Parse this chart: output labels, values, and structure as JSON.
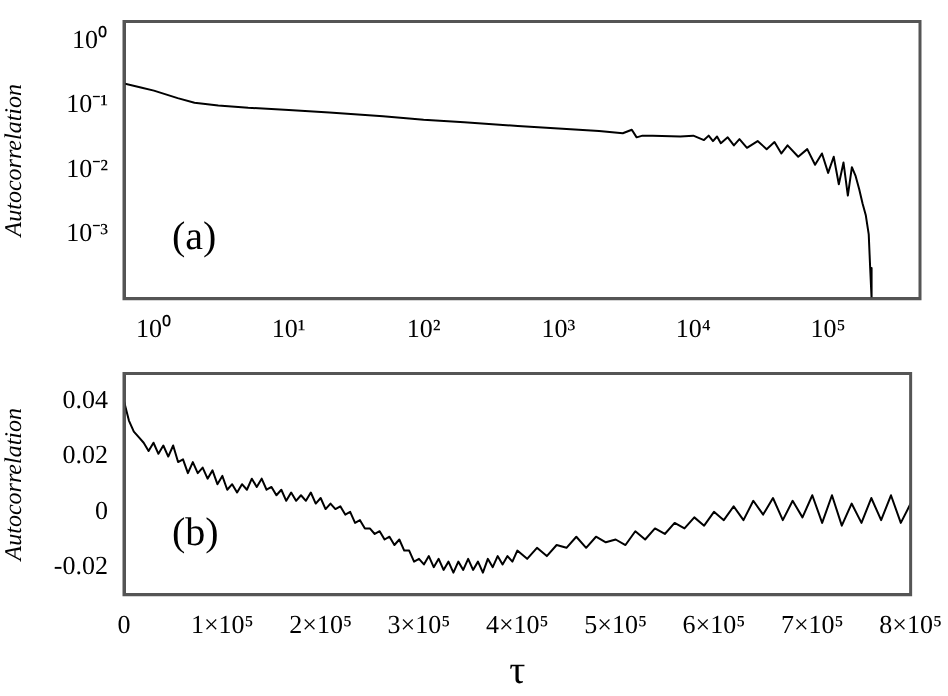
{
  "chart_data": [
    {
      "type": "line",
      "ylabel": "Autocorrelation",
      "log": "xy",
      "grid": false,
      "line_style": "solid",
      "marker": "none",
      "xlim": [
        0.6,
        480000
      ],
      "xticks": [
        {
          "value": 1,
          "label": "10⁰"
        },
        {
          "value": 10,
          "label": "10¹"
        },
        {
          "value": 100,
          "label": "10²"
        },
        {
          "value": 1000,
          "label": "10³"
        },
        {
          "value": 10000,
          "label": "10⁴"
        },
        {
          "value": 100000,
          "label": "10⁵"
        }
      ],
      "ylim": [
        0.0001,
        2
      ],
      "yticks": [
        {
          "value": 1,
          "label": "10⁰"
        },
        {
          "value": 0.1,
          "label": "10⁻¹"
        },
        {
          "value": 0.01,
          "label": "10⁻²"
        },
        {
          "value": 0.001,
          "label": "10⁻³"
        }
      ],
      "annotations": [
        "(a)"
      ],
      "series": [
        {
          "color": "#000000",
          "x": [
            0.6,
            0.8,
            1,
            1.5,
            2,
            3,
            5,
            10,
            20,
            50,
            100,
            200,
            500,
            1000,
            2000,
            3000,
            3500,
            3800,
            4200,
            5000,
            8000,
            10000,
            12000,
            13000,
            14000,
            15000,
            16000,
            18000,
            20000,
            22000,
            25000,
            30000,
            35000,
            40000,
            45000,
            50000,
            60000,
            70000,
            80000,
            90000,
            100000,
            110000,
            120000,
            130000,
            140000,
            150000,
            160000,
            170000,
            180000,
            190000,
            200000,
            205000,
            210000
          ],
          "values": [
            0.22,
            0.19,
            0.17,
            0.13,
            0.11,
            0.1,
            0.092,
            0.085,
            0.078,
            0.068,
            0.06,
            0.055,
            0.048,
            0.044,
            0.04,
            0.037,
            0.042,
            0.032,
            0.034,
            0.034,
            0.033,
            0.034,
            0.029,
            0.034,
            0.028,
            0.033,
            0.026,
            0.032,
            0.024,
            0.03,
            0.022,
            0.028,
            0.021,
            0.027,
            0.018,
            0.024,
            0.016,
            0.021,
            0.012,
            0.018,
            0.009,
            0.016,
            0.006,
            0.013,
            0.004,
            0.011,
            0.008,
            0.005,
            0.003,
            0.002,
            0.001,
            0.0003,
            0.0001
          ]
        }
      ]
    },
    {
      "type": "line",
      "xlabel": "τ",
      "ylabel": "Autocorrelation",
      "grid": false,
      "line_style": "solid",
      "marker": "none",
      "xlim": [
        0,
        800000
      ],
      "xticks": [
        0,
        {
          "value": 100000,
          "label": "1×10⁵"
        },
        {
          "value": 200000,
          "label": "2×10⁵"
        },
        {
          "value": 300000,
          "label": "3×10⁵"
        },
        {
          "value": 400000,
          "label": "4×10⁵"
        },
        {
          "value": 500000,
          "label": "5×10⁵"
        },
        {
          "value": 600000,
          "label": "6×10⁵"
        },
        {
          "value": 700000,
          "label": "7×10⁵"
        },
        {
          "value": 800000,
          "label": "8×10⁵"
        }
      ],
      "ylim": [
        -0.03,
        0.05
      ],
      "yticks": [
        -0.02,
        0,
        0.02,
        0.04
      ],
      "annotations": [
        "(b)"
      ],
      "series": [
        {
          "color": "#000000",
          "x": [
            0,
            5000,
            10000,
            15000,
            20000,
            25000,
            30000,
            35000,
            40000,
            45000,
            50000,
            55000,
            60000,
            65000,
            70000,
            75000,
            80000,
            85000,
            90000,
            95000,
            100000,
            105000,
            110000,
            115000,
            120000,
            125000,
            130000,
            135000,
            140000,
            145000,
            150000,
            155000,
            160000,
            165000,
            170000,
            175000,
            180000,
            185000,
            190000,
            195000,
            200000,
            205000,
            210000,
            215000,
            220000,
            225000,
            230000,
            235000,
            240000,
            245000,
            250000,
            255000,
            260000,
            265000,
            270000,
            275000,
            280000,
            285000,
            290000,
            295000,
            300000,
            305000,
            310000,
            315000,
            320000,
            325000,
            330000,
            335000,
            340000,
            345000,
            350000,
            355000,
            360000,
            365000,
            370000,
            375000,
            380000,
            385000,
            390000,
            395000,
            400000,
            410000,
            420000,
            430000,
            440000,
            450000,
            460000,
            470000,
            480000,
            490000,
            500000,
            510000,
            520000,
            530000,
            540000,
            550000,
            560000,
            570000,
            580000,
            590000,
            600000,
            610000,
            620000,
            630000,
            640000,
            650000,
            660000,
            670000,
            680000,
            690000,
            700000,
            710000,
            720000,
            730000,
            740000,
            750000,
            760000,
            770000,
            780000,
            790000,
            800000
          ],
          "values": [
            0.04,
            0.033,
            0.029,
            0.027,
            0.025,
            0.022,
            0.025,
            0.021,
            0.024,
            0.02,
            0.024,
            0.018,
            0.019,
            0.014,
            0.018,
            0.014,
            0.016,
            0.012,
            0.015,
            0.01,
            0.013,
            0.008,
            0.01,
            0.007,
            0.01,
            0.008,
            0.012,
            0.009,
            0.012,
            0.008,
            0.009,
            0.006,
            0.008,
            0.004,
            0.007,
            0.004,
            0.006,
            0.004,
            0.007,
            0.003,
            0.005,
            0.001,
            0.003,
            0.001,
            0.002,
            -0.001,
            0.0,
            -0.004,
            -0.003,
            -0.006,
            -0.006,
            -0.008,
            -0.007,
            -0.01,
            -0.009,
            -0.012,
            -0.01,
            -0.014,
            -0.014,
            -0.018,
            -0.017,
            -0.019,
            -0.016,
            -0.02,
            -0.017,
            -0.021,
            -0.018,
            -0.022,
            -0.018,
            -0.021,
            -0.017,
            -0.021,
            -0.018,
            -0.022,
            -0.017,
            -0.02,
            -0.016,
            -0.019,
            -0.016,
            -0.018,
            -0.014,
            -0.017,
            -0.013,
            -0.016,
            -0.012,
            -0.013,
            -0.009,
            -0.013,
            -0.009,
            -0.011,
            -0.01,
            -0.012,
            -0.007,
            -0.01,
            -0.006,
            -0.008,
            -0.004,
            -0.006,
            -0.002,
            -0.005,
            0.0,
            -0.003,
            0.002,
            -0.003,
            0.004,
            -0.001,
            0.005,
            -0.003,
            0.004,
            -0.002,
            0.006,
            -0.004,
            0.006,
            -0.005,
            0.003,
            -0.004,
            0.005,
            -0.003,
            0.006,
            -0.004,
            0.003
          ]
        }
      ]
    }
  ]
}
